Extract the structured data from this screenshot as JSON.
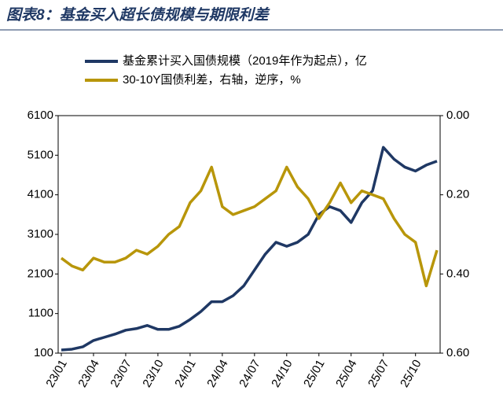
{
  "chart_data": {
    "type": "line",
    "title": "图表8：基金买入超长债规模与期限利差",
    "categories": [
      "23/01",
      null,
      null,
      "23/04",
      null,
      null,
      "23/07",
      null,
      null,
      "23/10",
      null,
      null,
      "24/01",
      null,
      null,
      "24/04",
      null,
      null,
      "24/07",
      null,
      null,
      "24/10",
      null,
      null,
      "25/01",
      null,
      null,
      "25/04",
      null,
      null,
      "25/07",
      null,
      null,
      "25/10",
      null,
      null
    ],
    "series": [
      {
        "name": "基金累计买入国债规模（2019年作为起点），亿",
        "color": "#1f3864",
        "values": [
          180,
          200,
          260,
          420,
          500,
          580,
          680,
          720,
          800,
          700,
          700,
          780,
          950,
          1150,
          1400,
          1400,
          1550,
          1800,
          2200,
          2600,
          2900,
          2800,
          2900,
          3100,
          3600,
          3800,
          3700,
          3400,
          3900,
          4200,
          5300,
          5000,
          4800,
          4700,
          4850,
          4950
        ]
      },
      {
        "name": "30-10Y国债利差，右轴，逆序，%",
        "color": "#b8960a",
        "axis": "y2",
        "values": [
          0.36,
          0.38,
          0.39,
          0.36,
          0.37,
          0.37,
          0.36,
          0.34,
          0.35,
          0.33,
          0.3,
          0.28,
          0.22,
          0.19,
          0.13,
          0.23,
          0.25,
          0.24,
          0.23,
          0.21,
          0.19,
          0.13,
          0.18,
          0.21,
          0.26,
          0.22,
          0.17,
          0.22,
          0.19,
          0.2,
          0.21,
          0.26,
          0.3,
          0.32,
          0.43,
          0.34
        ]
      }
    ],
    "ylim": [
      100,
      6100
    ],
    "yticks": [
      100,
      1100,
      2100,
      3100,
      4100,
      5100,
      6100
    ],
    "y2lim": [
      0,
      0.6
    ],
    "y2_inverted": true,
    "y2ticks": [
      {
        "value": 0,
        "label": "0.00"
      },
      {
        "value": 0.2,
        "label": "0.20"
      },
      {
        "value": 0.4,
        "label": "0.40"
      },
      {
        "value": 0.6,
        "label": "0.60"
      }
    ]
  }
}
